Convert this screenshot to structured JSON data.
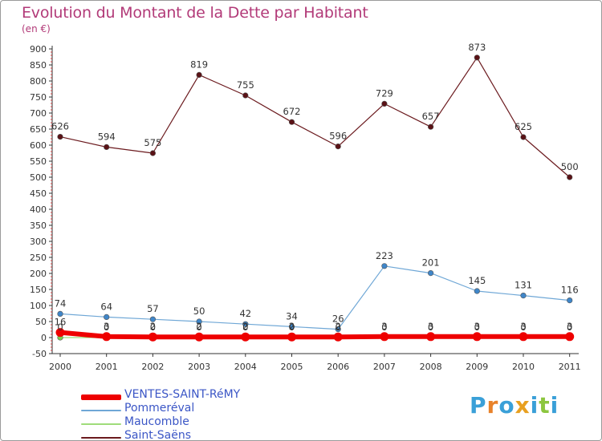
{
  "title": "Evolution du Montant de la Dette par Habitant",
  "subtitle": "(en €)",
  "logo_text": "Proxiti",
  "logo_colors": [
    "#3aa0d8",
    "#e8822a",
    "#3aa0d8",
    "#e8a020",
    "#3aa0d8",
    "#8cc63f",
    "#3aa0d8"
  ],
  "chart_data": {
    "type": "line",
    "title": "Evolution du Montant de la Dette par Habitant",
    "ylabel": "(en €)",
    "xlabel": "",
    "x": [
      "2000",
      "2001",
      "2002",
      "2003",
      "2004",
      "2005",
      "2006",
      "2007",
      "2008",
      "2009",
      "2010",
      "2011"
    ],
    "ylim": [
      -50,
      900
    ],
    "yticks": [
      "-50",
      "0",
      "50",
      "100",
      "150",
      "200",
      "250",
      "300",
      "350",
      "400",
      "450",
      "500",
      "550",
      "600",
      "650",
      "700",
      "750",
      "800",
      "850",
      "900"
    ],
    "grid": false,
    "legend_position": "bottom-left",
    "series": [
      {
        "name": "Saint-Saëns",
        "color": "#6b1a1e",
        "marker": "#5a1216",
        "width": 1.2,
        "values": [
          626,
          594,
          575,
          819,
          755,
          672,
          596,
          729,
          657,
          873,
          625,
          500
        ],
        "labels": [
          "626",
          "594",
          "575",
          "819",
          "755",
          "672",
          "596",
          "729",
          "657",
          "873",
          "625",
          "500"
        ]
      },
      {
        "name": "Pommeréval",
        "color": "#6fa7d6",
        "marker": "#3f86c9",
        "width": 1.2,
        "values": [
          74,
          64,
          57,
          50,
          42,
          34,
          26,
          223,
          201,
          145,
          131,
          116
        ],
        "labels": [
          "74",
          "64",
          "57",
          "50",
          "42",
          "34",
          "26",
          "223",
          "201",
          "145",
          "131",
          "116"
        ]
      },
      {
        "name": "Maucomble",
        "color": "#9fdc7a",
        "marker": "#7ccd50",
        "width": 1.2,
        "values": [
          0,
          0,
          0,
          0,
          0,
          0,
          0,
          0,
          0,
          0,
          0,
          0
        ],
        "labels": [
          "0",
          "0",
          "0",
          "0",
          "0",
          "0",
          "0",
          "0",
          "0",
          "0",
          "0",
          "0"
        ]
      },
      {
        "name": "VENTES-SAINT-RéMY",
        "color": "#ee0000",
        "marker": "#ee0000",
        "width": 6,
        "values": [
          16,
          3,
          2,
          2,
          2,
          2,
          2,
          3,
          3,
          3,
          3,
          3
        ],
        "labels": [
          "16",
          "3",
          "2",
          "2",
          "2",
          "2",
          "2",
          "3",
          "3",
          "3",
          "3",
          "3"
        ]
      }
    ],
    "legend": [
      "VENTES-SAINT-RéMY",
      "Pommeréval",
      "Maucomble",
      "Saint-Saëns"
    ]
  },
  "legend_items": [
    {
      "label": "VENTES-SAINT-RéMY",
      "color": "#ee0000",
      "thickness": 7
    },
    {
      "label": "Pommeréval",
      "color": "#6fa7d6",
      "thickness": 2
    },
    {
      "label": "Maucomble",
      "color": "#9fdc7a",
      "thickness": 2
    },
    {
      "label": "Saint-Saëns",
      "color": "#6b1a1e",
      "thickness": 2
    }
  ]
}
